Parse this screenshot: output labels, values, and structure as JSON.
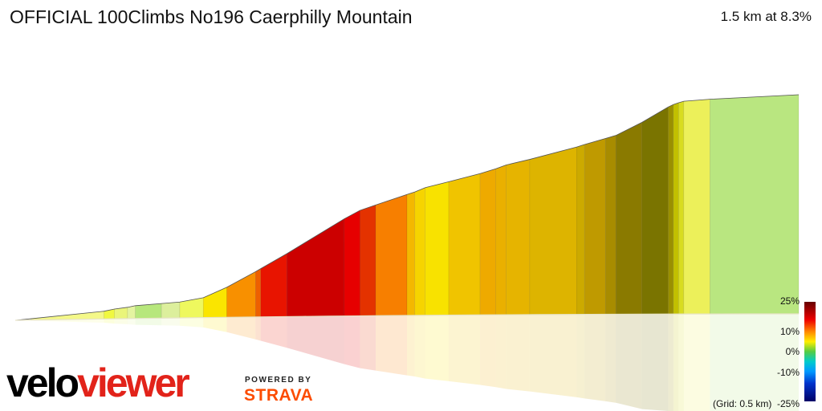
{
  "header": {
    "title": "OFFICIAL 100Climbs No196 Caerphilly Mountain",
    "summary": "1.5 km at 8.3%"
  },
  "branding": {
    "logo_velo": "velo",
    "logo_viewer": "viewer",
    "powered_by": "POWERED BY",
    "strava": "STRAVA"
  },
  "colors": {
    "background": "#ffffff",
    "velo": "#000000",
    "viewer": "#e2231a",
    "strava": "#fc4c02"
  },
  "chart_data": {
    "type": "area",
    "title": "OFFICIAL 100Climbs No196 Caerphilly Mountain",
    "distance_km": 1.5,
    "average_gradient_pct": 8.3,
    "grid_note": "(Grid: 0.5 km)",
    "x_unit": "km",
    "y_unit": "m (relative elevation)",
    "segments": [
      {
        "x0": 0.0,
        "x1": 0.03,
        "y0": 0.0,
        "y1": 0.5,
        "grade": 1.5,
        "color": "#ffffe0"
      },
      {
        "x0": 0.03,
        "x1": 0.17,
        "y0": 0.5,
        "y1": 3.0,
        "grade": 2.0,
        "color": "#f4f888"
      },
      {
        "x0": 0.17,
        "x1": 0.19,
        "y0": 3.0,
        "y1": 3.8,
        "grade": 3.5,
        "color": "#f0f840"
      },
      {
        "x0": 0.19,
        "x1": 0.215,
        "y0": 3.8,
        "y1": 4.4,
        "grade": 2.5,
        "color": "#eaf57a"
      },
      {
        "x0": 0.215,
        "x1": 0.23,
        "y0": 4.4,
        "y1": 5.0,
        "grade": 3.0,
        "color": "#e4f4a0"
      },
      {
        "x0": 0.23,
        "x1": 0.28,
        "y0": 5.0,
        "y1": 5.7,
        "grade": 1.2,
        "color": "#b7e77c"
      },
      {
        "x0": 0.28,
        "x1": 0.315,
        "y0": 5.7,
        "y1": 6.2,
        "grade": 1.8,
        "color": "#dcef9c"
      },
      {
        "x0": 0.315,
        "x1": 0.36,
        "y0": 6.2,
        "y1": 7.8,
        "grade": 3.5,
        "color": "#eef85e"
      },
      {
        "x0": 0.36,
        "x1": 0.405,
        "y0": 7.8,
        "y1": 11.8,
        "grade": 6.0,
        "color": "#fae500"
      },
      {
        "x0": 0.405,
        "x1": 0.46,
        "y0": 11.8,
        "y1": 17.8,
        "grade": 9.0,
        "color": "#f89000"
      },
      {
        "x0": 0.46,
        "x1": 0.47,
        "y0": 17.8,
        "y1": 19.0,
        "grade": 10.0,
        "color": "#ee6000"
      },
      {
        "x0": 0.47,
        "x1": 0.52,
        "y0": 19.0,
        "y1": 24.8,
        "grade": 12.0,
        "color": "#e81400"
      },
      {
        "x0": 0.52,
        "x1": 0.63,
        "y0": 24.8,
        "y1": 38.4,
        "grade": 14.0,
        "color": "#cc0000"
      },
      {
        "x0": 0.63,
        "x1": 0.66,
        "y0": 38.4,
        "y1": 41.7,
        "grade": 13.0,
        "color": "#e60000"
      },
      {
        "x0": 0.66,
        "x1": 0.69,
        "y0": 41.7,
        "y1": 43.8,
        "grade": 11.0,
        "color": "#e43200"
      },
      {
        "x0": 0.69,
        "x1": 0.75,
        "y0": 43.8,
        "y1": 47.9,
        "grade": 9.0,
        "color": "#f77f00"
      },
      {
        "x0": 0.75,
        "x1": 0.765,
        "y0": 47.9,
        "y1": 48.9,
        "grade": 7.5,
        "color": "#f4b800"
      },
      {
        "x0": 0.765,
        "x1": 0.785,
        "y0": 48.9,
        "y1": 50.6,
        "grade": 6.5,
        "color": "#f6d400"
      },
      {
        "x0": 0.785,
        "x1": 0.83,
        "y0": 50.6,
        "y1": 52.9,
        "grade": 6.0,
        "color": "#f8e200"
      },
      {
        "x0": 0.83,
        "x1": 0.89,
        "y0": 52.9,
        "y1": 56.1,
        "grade": 7.0,
        "color": "#f0c400"
      },
      {
        "x0": 0.89,
        "x1": 0.92,
        "y0": 56.1,
        "y1": 58.0,
        "grade": 7.5,
        "color": "#eeaa00"
      },
      {
        "x0": 0.92,
        "x1": 0.94,
        "y0": 58.0,
        "y1": 59.5,
        "grade": 7.5,
        "color": "#eab000"
      },
      {
        "x0": 0.94,
        "x1": 0.985,
        "y0": 59.5,
        "y1": 61.7,
        "grade": 7.0,
        "color": "#e6b400"
      },
      {
        "x0": 0.985,
        "x1": 1.075,
        "y0": 61.7,
        "y1": 66.6,
        "grade": 7.0,
        "color": "#ddb400"
      },
      {
        "x0": 1.075,
        "x1": 1.09,
        "y0": 66.6,
        "y1": 67.6,
        "grade": 7.5,
        "color": "#ccaa00"
      },
      {
        "x0": 1.09,
        "x1": 1.13,
        "y0": 67.6,
        "y1": 70.0,
        "grade": 8.0,
        "color": "#bf9a00"
      },
      {
        "x0": 1.13,
        "x1": 1.15,
        "y0": 70.0,
        "y1": 71.2,
        "grade": 8.5,
        "color": "#a88c00"
      },
      {
        "x0": 1.15,
        "x1": 1.2,
        "y0": 71.2,
        "y1": 76.4,
        "grade": 9.0,
        "color": "#8a7a00"
      },
      {
        "x0": 1.2,
        "x1": 1.25,
        "y0": 76.4,
        "y1": 82.5,
        "grade": 11.0,
        "color": "#7a7400"
      },
      {
        "x0": 1.25,
        "x1": 1.26,
        "y0": 82.5,
        "y1": 83.5,
        "grade": 10.0,
        "color": "#9a9000"
      },
      {
        "x0": 1.26,
        "x1": 1.27,
        "y0": 83.5,
        "y1": 84.2,
        "grade": 6.0,
        "color": "#c2c000"
      },
      {
        "x0": 1.27,
        "x1": 1.28,
        "y0": 84.2,
        "y1": 84.8,
        "grade": 4.5,
        "color": "#d8dc20"
      },
      {
        "x0": 1.28,
        "x1": 1.33,
        "y0": 84.8,
        "y1": 85.6,
        "grade": 2.5,
        "color": "#ecf05a"
      },
      {
        "x0": 1.33,
        "x1": 1.5,
        "y0": 85.6,
        "y1": 87.4,
        "grade": 1.0,
        "color": "#b9e680"
      }
    ],
    "ylim": [
      0,
      100
    ],
    "legend": {
      "type": "gradient colour scale",
      "placement": "right",
      "range": [
        -25,
        25
      ],
      "ticks": [
        "25%",
        "10%",
        "0%",
        "-10%",
        "-25%"
      ],
      "stops": [
        {
          "value": 25,
          "color": "#660000"
        },
        {
          "value": 16,
          "color": "#ee0000"
        },
        {
          "value": 10,
          "color": "#ff8800"
        },
        {
          "value": 5,
          "color": "#ffee00"
        },
        {
          "value": 0,
          "color": "#55cc44"
        },
        {
          "value": -5,
          "color": "#00cccc"
        },
        {
          "value": -10,
          "color": "#0099ff"
        },
        {
          "value": -16,
          "color": "#0033cc"
        },
        {
          "value": -25,
          "color": "#000066"
        }
      ]
    }
  }
}
